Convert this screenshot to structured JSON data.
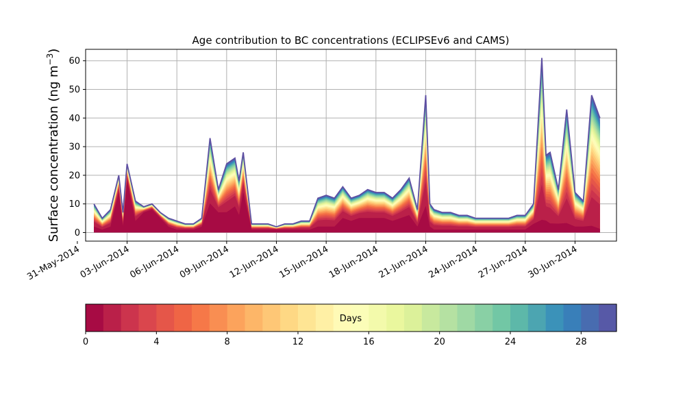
{
  "chart_data": {
    "type": "area",
    "title": "Age contribution to BC concentrations (ECLIPSEv6 and CAMS)",
    "ylabel": "Surface concentration (ng m",
    "ylabel_superscript": "−3",
    "ylabel_close": ")",
    "ylim": [
      -3,
      64
    ],
    "yticks": [
      0,
      10,
      20,
      30,
      40,
      50,
      60
    ],
    "xlim": [
      "2014-05-31T12:00",
      "2014-07-02T12:00"
    ],
    "xtick_labels": [
      "31-May-2014",
      "03-Jun-2014",
      "06-Jun-2014",
      "09-Jun-2014",
      "12-Jun-2014",
      "15-Jun-2014",
      "18-Jun-2014",
      "21-Jun-2014",
      "24-Jun-2014",
      "27-Jun-2014",
      "30-Jun-2014"
    ],
    "xtick_dates": [
      "2014-05-31",
      "2014-06-03",
      "2014-06-06",
      "2014-06-09",
      "2014-06-12",
      "2014-06-15",
      "2014-06-18",
      "2014-06-21",
      "2014-06-24",
      "2014-06-27",
      "2014-06-30"
    ],
    "grid": true,
    "stack_layers": 30,
    "colormap": "Spectral",
    "x": [
      "2014-06-01T00:00",
      "2014-06-01T12:00",
      "2014-06-02T00:00",
      "2014-06-02T12:00",
      "2014-06-02T18:00",
      "2014-06-03T00:00",
      "2014-06-03T12:00",
      "2014-06-04T00:00",
      "2014-06-04T12:00",
      "2014-06-05T00:00",
      "2014-06-05T12:00",
      "2014-06-06T00:00",
      "2014-06-06T12:00",
      "2014-06-07T00:00",
      "2014-06-07T12:00",
      "2014-06-08T00:00",
      "2014-06-08T12:00",
      "2014-06-09T00:00",
      "2014-06-09T12:00",
      "2014-06-09T18:00",
      "2014-06-10T00:00",
      "2014-06-10T12:00",
      "2014-06-11T00:00",
      "2014-06-11T12:00",
      "2014-06-12T00:00",
      "2014-06-12T12:00",
      "2014-06-13T00:00",
      "2014-06-13T12:00",
      "2014-06-14T00:00",
      "2014-06-14T12:00",
      "2014-06-15T00:00",
      "2014-06-15T12:00",
      "2014-06-16T00:00",
      "2014-06-16T12:00",
      "2014-06-17T00:00",
      "2014-06-17T12:00",
      "2014-06-18T00:00",
      "2014-06-18T12:00",
      "2014-06-19T00:00",
      "2014-06-19T12:00",
      "2014-06-20T00:00",
      "2014-06-20T12:00",
      "2014-06-21T00:00",
      "2014-06-21T06:00",
      "2014-06-21T12:00",
      "2014-06-22T00:00",
      "2014-06-22T12:00",
      "2014-06-23T00:00",
      "2014-06-23T12:00",
      "2014-06-24T00:00",
      "2014-06-24T12:00",
      "2014-06-25T00:00",
      "2014-06-25T12:00",
      "2014-06-26T00:00",
      "2014-06-26T12:00",
      "2014-06-27T00:00",
      "2014-06-27T12:00",
      "2014-06-28T00:00",
      "2014-06-28T06:00",
      "2014-06-28T12:00",
      "2014-06-29T00:00",
      "2014-06-29T12:00",
      "2014-06-30T00:00",
      "2014-06-30T12:00",
      "2014-07-01T00:00",
      "2014-07-01T12:00"
    ],
    "total": [
      10,
      5,
      8,
      20,
      7,
      24,
      11,
      9,
      10,
      7,
      5,
      4,
      3,
      3,
      5,
      33,
      15,
      24,
      26,
      18,
      28,
      3,
      3,
      3,
      2,
      3,
      3,
      4,
      4,
      12,
      13,
      12,
      16,
      12,
      13,
      15,
      14,
      14,
      12,
      15,
      19,
      8,
      48,
      10,
      8,
      7,
      7,
      6,
      6,
      5,
      5,
      5,
      5,
      5,
      6,
      6,
      10,
      61,
      27,
      28,
      15,
      43,
      14,
      11,
      48,
      40
    ],
    "youngest_layer": [
      2,
      1,
      2,
      14,
      2,
      18,
      4,
      7,
      8,
      5,
      2,
      1,
      1,
      1,
      2,
      10,
      7,
      7,
      9,
      6,
      14,
      1,
      1,
      1,
      1,
      1,
      1,
      1,
      1,
      2,
      2,
      2,
      5,
      4,
      5,
      5,
      5,
      5,
      4,
      5,
      6,
      2,
      9,
      2,
      1,
      1,
      1,
      1,
      1,
      1,
      1,
      1,
      1,
      1,
      1,
      1,
      3,
      4,
      4,
      3,
      3,
      3,
      2,
      2,
      2,
      1
    ]
  },
  "colorbar": {
    "label": "Days",
    "ticks": [
      0,
      4,
      8,
      12,
      16,
      20,
      24,
      28
    ],
    "min": 0,
    "max": 30,
    "segments": 30
  },
  "colors": {
    "grid": "#b0b0b0",
    "axis": "#000000",
    "outline": "#5e4fa2"
  }
}
